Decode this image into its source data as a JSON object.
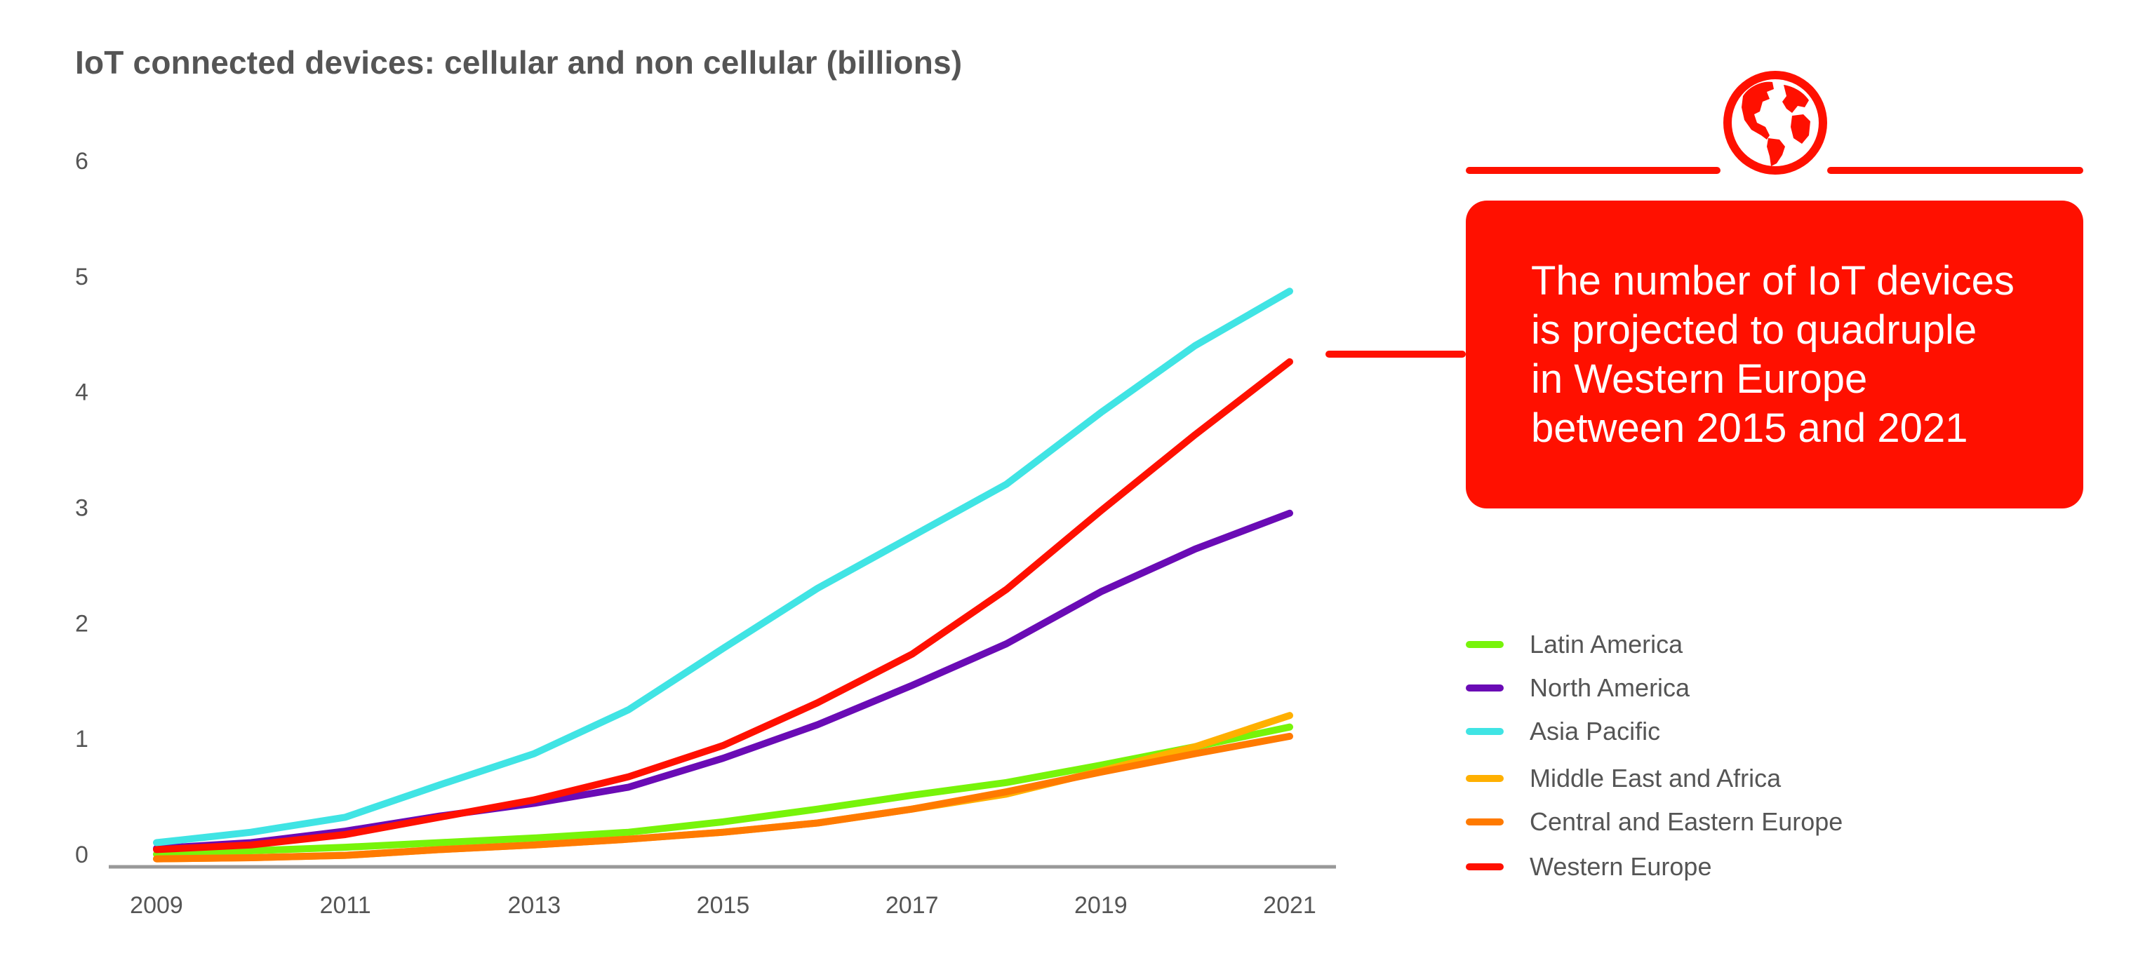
{
  "chart_data": {
    "type": "line",
    "title": "IoT connected devices: cellular and non cellular (billions)",
    "xlabel": "",
    "ylabel": "",
    "x": [
      2009,
      2010,
      2011,
      2012,
      2013,
      2014,
      2015,
      2016,
      2017,
      2018,
      2019,
      2020,
      2021
    ],
    "x_tick_labels": [
      "2009",
      "2011",
      "2013",
      "2015",
      "2017",
      "2019",
      "2021"
    ],
    "y_tick_labels": [
      "0",
      "1",
      "2",
      "3",
      "4",
      "5",
      "6"
    ],
    "ylim": [
      0,
      6
    ],
    "xlim": [
      2009,
      2021
    ],
    "grid": false,
    "legend_position": "right",
    "series": [
      {
        "name": "Latin America",
        "color": "#77f40a",
        "values": [
          0.0,
          0.03,
          0.06,
          0.1,
          0.14,
          0.19,
          0.28,
          0.39,
          0.51,
          0.62,
          0.77,
          0.93,
          1.1
        ]
      },
      {
        "name": "North America",
        "color": "#6a0bb5",
        "values": [
          0.05,
          0.1,
          0.2,
          0.33,
          0.44,
          0.58,
          0.83,
          1.12,
          1.46,
          1.82,
          2.27,
          2.64,
          2.95
        ]
      },
      {
        "name": "Asia Pacific",
        "color": "#40e4e4",
        "values": [
          0.1,
          0.19,
          0.32,
          0.6,
          0.87,
          1.25,
          1.78,
          2.3,
          2.75,
          3.2,
          3.82,
          4.4,
          4.87
        ]
      },
      {
        "name": "Middle East and Africa",
        "color": "#ffb000",
        "values": [
          -0.04,
          -0.03,
          -0.01,
          0.04,
          0.08,
          0.13,
          0.19,
          0.27,
          0.39,
          0.52,
          0.72,
          0.93,
          1.2
        ]
      },
      {
        "name": "Central and Eastern Europe",
        "color": "#ff7a00",
        "values": [
          -0.04,
          -0.03,
          -0.01,
          0.04,
          0.08,
          0.13,
          0.19,
          0.27,
          0.39,
          0.54,
          0.71,
          0.87,
          1.02
        ]
      },
      {
        "name": "Western Europe",
        "color": "#ff1000",
        "values": [
          0.04,
          0.08,
          0.17,
          0.32,
          0.47,
          0.67,
          0.94,
          1.31,
          1.73,
          2.29,
          2.97,
          3.63,
          4.26
        ]
      }
    ]
  },
  "callout": {
    "lines": [
      "The number of IoT devices",
      "is projected to quadruple",
      "in Western Europe",
      "between 2015 and 2021"
    ],
    "icon": "globe-icon",
    "color": "#ff1000"
  }
}
